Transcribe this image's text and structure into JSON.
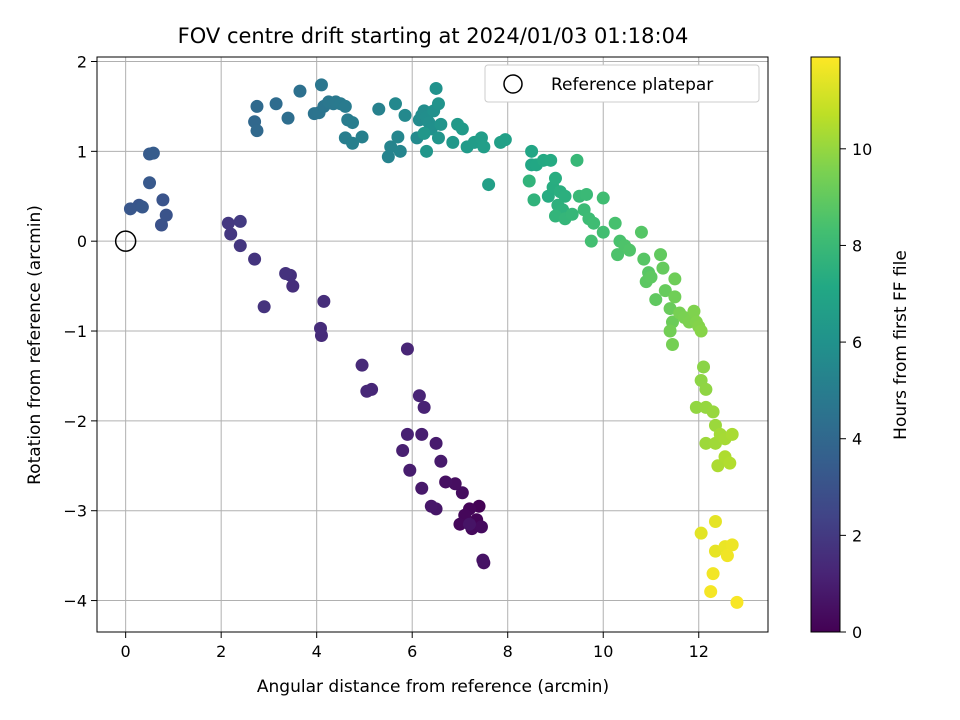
{
  "chart_data": {
    "type": "scatter",
    "title": "FOV centre drift starting at 2024/01/03 01:18:04",
    "xlabel": "Angular distance from reference (arcmin)",
    "ylabel": "Rotation from reference (arcmin)",
    "xlim": [
      -0.6,
      13.45
    ],
    "ylim": [
      -4.35,
      2.05
    ],
    "x_ticks": [
      0,
      2,
      4,
      6,
      8,
      10,
      12
    ],
    "y_ticks": [
      -4,
      -3,
      -2,
      -1,
      0,
      1,
      2
    ],
    "grid": true,
    "legend": {
      "location": "upper-right",
      "entries": [
        "Reference platepar"
      ]
    },
    "reference_point": {
      "x": 0,
      "y": 0
    },
    "colorbar": {
      "label": "Hours from first FF file",
      "colormap": "viridis",
      "range": [
        0,
        11.9
      ],
      "ticks": [
        0,
        2,
        4,
        6,
        8,
        10
      ]
    },
    "points": [
      [
        7.4,
        -2.95,
        0.05
      ],
      [
        7.35,
        -3.1,
        0.1
      ],
      [
        7.2,
        -2.98,
        0.15
      ],
      [
        7.1,
        -3.05,
        0.2
      ],
      [
        7.0,
        -3.15,
        0.25
      ],
      [
        7.25,
        -3.2,
        0.3
      ],
      [
        7.45,
        -3.18,
        0.35
      ],
      [
        7.05,
        -2.8,
        0.4
      ],
      [
        6.9,
        -2.7,
        0.45
      ],
      [
        6.7,
        -2.68,
        0.5
      ],
      [
        7.5,
        -3.58,
        0.55
      ],
      [
        7.48,
        -3.55,
        0.6
      ],
      [
        7.2,
        -3.15,
        0.65
      ],
      [
        6.5,
        -2.98,
        0.7
      ],
      [
        6.4,
        -2.95,
        0.75
      ],
      [
        6.2,
        -2.75,
        0.8
      ],
      [
        6.6,
        -2.45,
        0.85
      ],
      [
        6.5,
        -2.25,
        0.9
      ],
      [
        5.95,
        -2.55,
        0.95
      ],
      [
        6.2,
        -2.15,
        1.0
      ],
      [
        5.8,
        -2.33,
        1.05
      ],
      [
        5.9,
        -2.15,
        1.1
      ],
      [
        6.25,
        -1.85,
        1.15
      ],
      [
        6.15,
        -1.72,
        1.2
      ],
      [
        5.9,
        -1.2,
        1.25
      ],
      [
        5.15,
        -1.65,
        1.3
      ],
      [
        5.05,
        -1.67,
        1.35
      ],
      [
        4.95,
        -1.38,
        1.4
      ],
      [
        4.1,
        -1.05,
        1.45
      ],
      [
        4.08,
        -0.97,
        1.5
      ],
      [
        4.15,
        -0.67,
        1.55
      ],
      [
        3.5,
        -0.5,
        1.6
      ],
      [
        3.45,
        -0.38,
        1.65
      ],
      [
        3.35,
        -0.36,
        1.7
      ],
      [
        2.9,
        -0.73,
        1.75
      ],
      [
        2.7,
        -0.2,
        1.8
      ],
      [
        2.4,
        -0.05,
        1.85
      ],
      [
        2.2,
        0.08,
        1.9
      ],
      [
        2.15,
        0.2,
        1.95
      ],
      [
        2.4,
        0.22,
        2.0
      ],
      [
        0.75,
        0.18,
        3.0
      ],
      [
        0.85,
        0.29,
        3.05
      ],
      [
        0.78,
        0.46,
        3.1
      ],
      [
        0.28,
        0.4,
        3.15
      ],
      [
        0.1,
        0.36,
        3.2
      ],
      [
        0.35,
        0.38,
        3.25
      ],
      [
        0.5,
        0.65,
        3.3
      ],
      [
        0.5,
        0.97,
        3.4
      ],
      [
        0.58,
        0.98,
        3.45
      ],
      [
        2.7,
        1.33,
        4.0
      ],
      [
        2.75,
        1.23,
        4.05
      ],
      [
        2.75,
        1.5,
        4.1
      ],
      [
        3.15,
        1.53,
        4.2
      ],
      [
        3.4,
        1.37,
        4.3
      ],
      [
        3.65,
        1.67,
        4.4
      ],
      [
        3.95,
        1.42,
        4.5
      ],
      [
        4.05,
        1.43,
        4.55
      ],
      [
        4.15,
        1.5,
        4.6
      ],
      [
        4.1,
        1.74,
        4.65
      ],
      [
        4.25,
        1.55,
        4.7
      ],
      [
        4.35,
        1.53,
        4.75
      ],
      [
        4.4,
        1.55,
        4.8
      ],
      [
        4.5,
        1.53,
        4.85
      ],
      [
        4.6,
        1.5,
        4.9
      ],
      [
        4.65,
        1.35,
        4.95
      ],
      [
        4.75,
        1.32,
        5.0
      ],
      [
        4.6,
        1.15,
        5.05
      ],
      [
        4.75,
        1.09,
        5.1
      ],
      [
        4.95,
        1.16,
        5.15
      ],
      [
        5.3,
        1.47,
        5.2
      ],
      [
        5.5,
        0.94,
        5.3
      ],
      [
        5.55,
        1.05,
        5.35
      ],
      [
        5.75,
        1.0,
        5.4
      ],
      [
        5.7,
        1.16,
        5.45
      ],
      [
        5.65,
        1.53,
        5.5
      ],
      [
        5.85,
        1.4,
        5.55
      ],
      [
        6.1,
        1.15,
        5.6
      ],
      [
        6.15,
        1.35,
        5.65
      ],
      [
        6.2,
        1.4,
        5.7
      ],
      [
        6.25,
        1.45,
        5.75
      ],
      [
        6.3,
        1.38,
        5.8
      ],
      [
        6.35,
        1.32,
        5.85
      ],
      [
        6.4,
        1.25,
        5.9
      ],
      [
        6.45,
        1.45,
        5.95
      ],
      [
        6.5,
        1.7,
        6.0
      ],
      [
        6.55,
        1.53,
        6.05
      ],
      [
        6.6,
        1.3,
        6.1
      ],
      [
        6.55,
        1.15,
        6.15
      ],
      [
        6.3,
        1.0,
        6.2
      ],
      [
        6.25,
        1.2,
        6.25
      ],
      [
        6.85,
        1.1,
        6.3
      ],
      [
        6.95,
        1.3,
        6.35
      ],
      [
        7.05,
        1.25,
        6.4
      ],
      [
        7.15,
        1.05,
        6.45
      ],
      [
        7.3,
        1.1,
        6.5
      ],
      [
        7.45,
        1.15,
        6.55
      ],
      [
        7.5,
        1.05,
        6.6
      ],
      [
        7.6,
        0.63,
        6.65
      ],
      [
        7.85,
        1.1,
        6.7
      ],
      [
        7.95,
        1.13,
        6.75
      ],
      [
        8.5,
        1.0,
        7.0
      ],
      [
        8.5,
        0.85,
        7.05
      ],
      [
        8.6,
        0.85,
        7.1
      ],
      [
        8.75,
        0.9,
        7.2
      ],
      [
        8.9,
        0.9,
        7.25
      ],
      [
        8.85,
        0.5,
        7.3
      ],
      [
        8.95,
        0.6,
        7.35
      ],
      [
        9.0,
        0.7,
        7.4
      ],
      [
        9.1,
        0.55,
        7.45
      ],
      [
        9.2,
        0.5,
        7.5
      ],
      [
        9.05,
        0.4,
        7.55
      ],
      [
        9.15,
        0.35,
        7.6
      ],
      [
        8.55,
        0.46,
        7.65
      ],
      [
        8.45,
        0.67,
        7.7
      ],
      [
        9.0,
        0.28,
        7.75
      ],
      [
        9.2,
        0.25,
        7.8
      ],
      [
        9.35,
        0.3,
        7.85
      ],
      [
        9.45,
        0.9,
        7.9
      ],
      [
        9.5,
        0.5,
        7.95
      ],
      [
        9.65,
        0.52,
        8.0
      ],
      [
        9.6,
        0.35,
        8.05
      ],
      [
        9.7,
        0.25,
        8.1
      ],
      [
        9.8,
        0.2,
        8.15
      ],
      [
        10.0,
        0.48,
        8.2
      ],
      [
        10.0,
        0.1,
        8.25
      ],
      [
        9.75,
        0.0,
        8.3
      ],
      [
        10.25,
        0.2,
        8.4
      ],
      [
        10.35,
        0.0,
        8.45
      ],
      [
        10.3,
        -0.15,
        8.5
      ],
      [
        10.45,
        -0.05,
        8.55
      ],
      [
        10.55,
        -0.1,
        8.6
      ],
      [
        10.8,
        0.1,
        8.7
      ],
      [
        10.85,
        -0.2,
        8.75
      ],
      [
        10.95,
        -0.35,
        8.8
      ],
      [
        10.9,
        -0.45,
        8.85
      ],
      [
        11.0,
        -0.4,
        8.9
      ],
      [
        11.1,
        -0.65,
        8.95
      ],
      [
        11.2,
        -0.15,
        9.0
      ],
      [
        11.25,
        -0.3,
        9.05
      ],
      [
        11.3,
        -0.55,
        9.1
      ],
      [
        11.4,
        -0.75,
        9.15
      ],
      [
        11.45,
        -0.9,
        9.2
      ],
      [
        11.5,
        -0.42,
        9.25
      ],
      [
        11.5,
        -0.62,
        9.3
      ],
      [
        11.4,
        -1.0,
        9.35
      ],
      [
        11.45,
        -1.15,
        9.4
      ],
      [
        11.6,
        -0.8,
        9.45
      ],
      [
        11.7,
        -0.85,
        9.5
      ],
      [
        11.8,
        -0.9,
        9.55
      ],
      [
        11.9,
        -0.78,
        9.6
      ],
      [
        11.95,
        -0.9,
        9.65
      ],
      [
        12.0,
        -0.95,
        9.7
      ],
      [
        12.05,
        -1.0,
        9.75
      ],
      [
        12.1,
        -1.4,
        9.8
      ],
      [
        12.05,
        -1.55,
        9.85
      ],
      [
        12.15,
        -1.65,
        9.9
      ],
      [
        11.95,
        -1.85,
        9.95
      ],
      [
        12.15,
        -1.85,
        10.0
      ],
      [
        12.3,
        -1.9,
        10.05
      ],
      [
        12.35,
        -2.05,
        10.1
      ],
      [
        12.15,
        -2.25,
        10.15
      ],
      [
        12.35,
        -2.25,
        10.2
      ],
      [
        12.45,
        -2.15,
        10.25
      ],
      [
        12.55,
        -2.2,
        10.3
      ],
      [
        12.7,
        -2.15,
        10.35
      ],
      [
        12.4,
        -2.5,
        10.4
      ],
      [
        12.55,
        -2.4,
        10.45
      ],
      [
        12.65,
        -2.47,
        10.5
      ],
      [
        12.05,
        -3.25,
        11.4
      ],
      [
        12.35,
        -3.12,
        11.45
      ],
      [
        12.35,
        -3.45,
        11.5
      ],
      [
        12.55,
        -3.4,
        11.55
      ],
      [
        12.7,
        -3.38,
        11.6
      ],
      [
        12.6,
        -3.5,
        11.65
      ],
      [
        12.3,
        -3.7,
        11.7
      ],
      [
        12.25,
        -3.9,
        11.75
      ],
      [
        12.8,
        -4.02,
        11.8
      ]
    ]
  }
}
